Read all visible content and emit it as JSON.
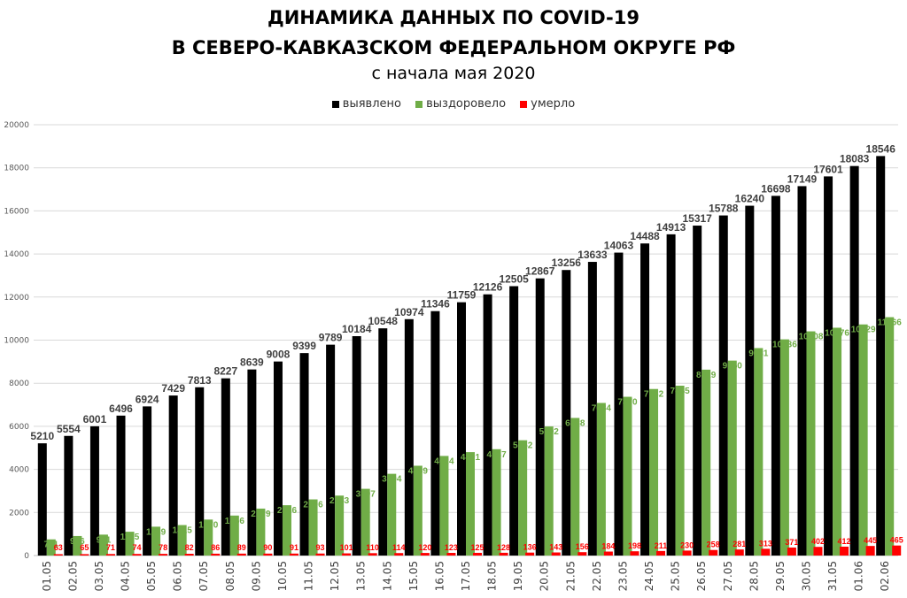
{
  "chart_data": {
    "type": "bar",
    "title_line1": "ДИНАМИКА ДАННЫХ ПО COVID-19",
    "title_line2": "В СЕВЕРО-КАВКАЗСКОМ ФЕДЕРАЛЬНОМ ОКРУГЕ РФ",
    "subtitle": "с начала мая 2020",
    "ylim": [
      0,
      20000
    ],
    "yticks": [
      0,
      2000,
      4000,
      6000,
      8000,
      10000,
      12000,
      14000,
      16000,
      18000,
      20000
    ],
    "grid": true,
    "legend_position": "top",
    "categories": [
      "01.05",
      "02.05",
      "03.05",
      "04.05",
      "05.05",
      "06.05",
      "07.05",
      "08.05",
      "09.05",
      "10.05",
      "11.05",
      "12.05",
      "13.05",
      "14.05",
      "15.05",
      "16.05",
      "17.05",
      "18.05",
      "19.05",
      "20.05",
      "21.05",
      "22.05",
      "23.05",
      "24.05",
      "25.05",
      "26.05",
      "27.05",
      "28.05",
      "29.05",
      "30.05",
      "31.05",
      "01.06",
      "02.06"
    ],
    "series": [
      {
        "name": "выявлено",
        "color": "#000000",
        "label_color": "#404040",
        "values": [
          5210,
          5554,
          6001,
          6496,
          6924,
          7429,
          7813,
          8227,
          8639,
          9008,
          9399,
          9789,
          10184,
          10548,
          10974,
          11346,
          11759,
          12126,
          12505,
          12867,
          13256,
          13633,
          14063,
          14488,
          14913,
          15317,
          15788,
          16240,
          16698,
          17149,
          17601,
          18083,
          18546
        ]
      },
      {
        "name": "выздоровело",
        "color": "#70ad47",
        "label_color": "#70ad47",
        "values": [
          751,
          906,
          971,
          1105,
          1339,
          1415,
          1670,
          1856,
          2179,
          2336,
          2606,
          2783,
          3097,
          3794,
          4169,
          4624,
          4801,
          4937,
          5352,
          5992,
          6388,
          7084,
          7370,
          7732,
          7885,
          8629,
          9050,
          9631,
          10036,
          10408,
          10576,
          10729,
          11066
        ]
      },
      {
        "name": "умерло",
        "color": "#ff0000",
        "label_color": "#ff0000",
        "values": [
          63,
          65,
          71,
          74,
          78,
          82,
          86,
          89,
          90,
          91,
          93,
          101,
          110,
          114,
          120,
          123,
          125,
          128,
          136,
          143,
          156,
          184,
          198,
          211,
          230,
          258,
          281,
          313,
          371,
          402,
          412,
          445,
          465
        ]
      }
    ]
  }
}
